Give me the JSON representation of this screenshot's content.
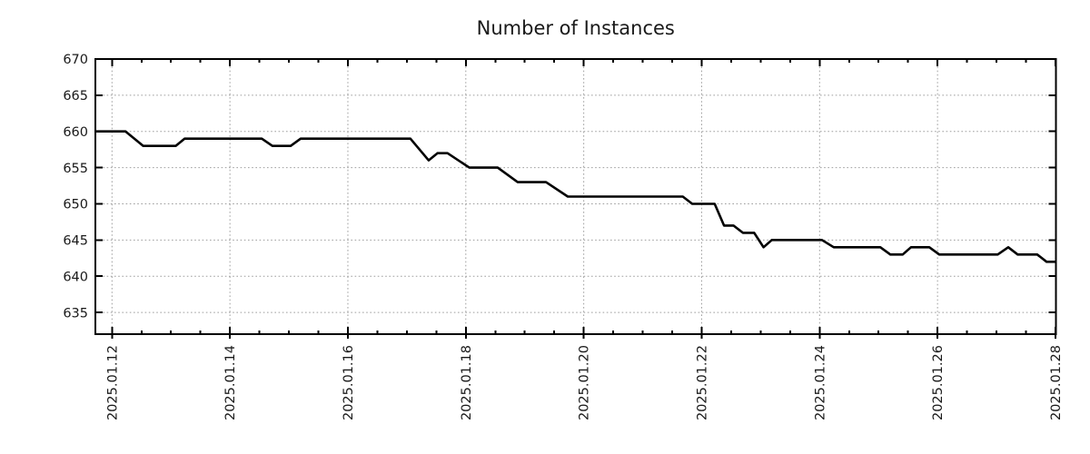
{
  "page": {
    "background": "#ffffff"
  },
  "chart_data": {
    "type": "line",
    "title": "Number of Instances",
    "xlabel": "",
    "ylabel": "",
    "legend": "none",
    "grid": "dotted gray lines at major x and y ticks",
    "x_axis": {
      "kind": "time",
      "unit": "date (January 2025, fractional day of month)",
      "lim_days": [
        11.718,
        28.008
      ],
      "minor_tick_step_days": 0.5,
      "major_ticks": [
        {
          "day": 12,
          "label": "2025.01.12"
        },
        {
          "day": 14,
          "label": "2025.01.14"
        },
        {
          "day": 16,
          "label": "2025.01.16"
        },
        {
          "day": 18,
          "label": "2025.01.18"
        },
        {
          "day": 20,
          "label": "2025.01.20"
        },
        {
          "day": 22,
          "label": "2025.01.22"
        },
        {
          "day": 24,
          "label": "2025.01.24"
        },
        {
          "day": 26,
          "label": "2025.01.26"
        },
        {
          "day": 28,
          "label": "2025.01.28"
        }
      ]
    },
    "y_axis": {
      "lim": [
        632,
        670
      ],
      "major_ticks": [
        {
          "value": 635,
          "label": "635"
        },
        {
          "value": 640,
          "label": "640"
        },
        {
          "value": 645,
          "label": "645"
        },
        {
          "value": 650,
          "label": "650"
        },
        {
          "value": 655,
          "label": "655"
        },
        {
          "value": 660,
          "label": "660"
        },
        {
          "value": 665,
          "label": "665"
        },
        {
          "value": 670,
          "label": "670"
        }
      ]
    },
    "series": [
      {
        "name": "instances",
        "color": "#000000",
        "points_day_value": [
          [
            11.72,
            660
          ],
          [
            12.23,
            660
          ],
          [
            12.53,
            658
          ],
          [
            13.08,
            658
          ],
          [
            13.23,
            659
          ],
          [
            14.54,
            659
          ],
          [
            14.72,
            658
          ],
          [
            15.03,
            658
          ],
          [
            15.2,
            659
          ],
          [
            17.06,
            659
          ],
          [
            17.37,
            656
          ],
          [
            17.52,
            657
          ],
          [
            17.69,
            657
          ],
          [
            18.06,
            655
          ],
          [
            18.54,
            655
          ],
          [
            18.88,
            653
          ],
          [
            19.36,
            653
          ],
          [
            19.73,
            651
          ],
          [
            21.68,
            651
          ],
          [
            21.84,
            650
          ],
          [
            22.22,
            650
          ],
          [
            22.38,
            647
          ],
          [
            22.54,
            647
          ],
          [
            22.7,
            646
          ],
          [
            22.89,
            646
          ],
          [
            23.05,
            644
          ],
          [
            23.19,
            645
          ],
          [
            24.04,
            645
          ],
          [
            24.24,
            644
          ],
          [
            25.03,
            644
          ],
          [
            25.2,
            643
          ],
          [
            25.41,
            643
          ],
          [
            25.55,
            644
          ],
          [
            25.86,
            644
          ],
          [
            26.03,
            643
          ],
          [
            27.02,
            643
          ],
          [
            27.2,
            644
          ],
          [
            27.36,
            643
          ],
          [
            27.69,
            643
          ],
          [
            27.85,
            642
          ],
          [
            28.01,
            642
          ]
        ]
      }
    ]
  },
  "style": {
    "line_color": "#000000",
    "grid_color": "#9e9e9e",
    "axis_color": "#000000",
    "text_color": "#1a1a1a",
    "background": "#ffffff"
  }
}
